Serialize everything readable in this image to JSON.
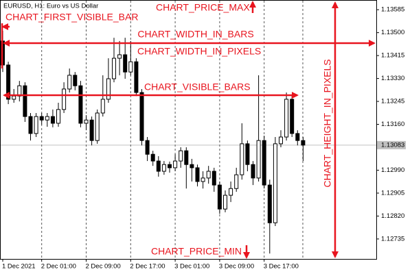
{
  "chart_data": {
    "type": "candlestick",
    "title": "EURUSD, H1:  Euro vs US Dollar",
    "categories": [
      "1 Dec 2021",
      null,
      null,
      null,
      null,
      null,
      null,
      "2 Dec 01:00",
      null,
      null,
      null,
      null,
      null,
      null,
      null,
      "2 Dec 09:00",
      null,
      null,
      null,
      null,
      null,
      null,
      null,
      "2 Dec 17:00",
      null,
      null,
      null,
      null,
      null,
      null,
      null,
      "3 Dec 01:00",
      null,
      null,
      null,
      null,
      null,
      null,
      null,
      "3 Dec 09:00",
      null,
      null,
      null,
      null,
      null,
      null,
      null,
      "3 Dec 17:00",
      null,
      null,
      null,
      null,
      null,
      null,
      null
    ],
    "open": [
      1.13469,
      1.1338,
      1.13253,
      1.13265,
      1.13303,
      1.13189,
      1.13126,
      1.13189,
      1.13176,
      1.13189,
      1.13164,
      1.13215,
      1.13291,
      1.13342,
      1.13303,
      1.13164,
      1.13176,
      1.131,
      1.13202,
      1.13253,
      1.13329,
      1.13405,
      1.13418,
      1.13354,
      1.13392,
      1.13278,
      1.131,
      1.13049,
      1.13024,
      1.12986,
      1.13011,
      1.12999,
      1.13024,
      1.13062,
      1.13011,
      1.12999,
      1.12948,
      1.12961,
      1.12986,
      1.12935,
      1.12846,
      1.12897,
      1.12922,
      1.12973,
      1.13088,
      1.13011,
      1.12961,
      1.131,
      1.12935,
      1.12795,
      1.13088,
      1.13113,
      1.13253,
      1.13126,
      1.131
    ],
    "high": [
      1.13507,
      1.13392,
      1.13291,
      1.13321,
      1.13316,
      1.13202,
      1.13202,
      1.13202,
      1.13202,
      1.13215,
      1.1324,
      1.13316,
      1.13367,
      1.13354,
      1.13321,
      1.13194,
      1.13189,
      1.13215,
      1.13342,
      1.13405,
      1.13481,
      1.13469,
      1.13481,
      1.13469,
      1.13405,
      1.13291,
      1.13113,
      1.13062,
      1.13042,
      1.13024,
      1.13022,
      1.13049,
      1.13075,
      1.13075,
      1.13032,
      1.13011,
      1.12986,
      1.13006,
      1.12999,
      1.12948,
      1.12915,
      1.12948,
      1.12999,
      1.13164,
      1.131,
      1.13024,
      1.13342,
      1.13118,
      1.12955,
      1.13113,
      1.13138,
      1.13278,
      1.13265,
      1.13138,
      1.13113
    ],
    "low": [
      1.13354,
      1.13235,
      1.1324,
      1.13245,
      1.13169,
      1.131,
      1.13113,
      1.13159,
      1.13151,
      1.13149,
      1.13151,
      1.13202,
      1.13278,
      1.13286,
      1.13149,
      1.13138,
      1.13082,
      1.13088,
      1.13189,
      1.1324,
      1.13316,
      1.13342,
      1.13329,
      1.13342,
      1.13265,
      1.13082,
      1.13024,
      1.13006,
      1.12966,
      1.12973,
      1.12981,
      1.12986,
      1.12999,
      1.12922,
      1.12948,
      1.1293,
      1.12922,
      1.1294,
      1.1291,
      1.12828,
      1.12834,
      1.12872,
      1.1291,
      1.12955,
      1.12986,
      1.12935,
      1.12948,
      1.12922,
      1.12681,
      1.12783,
      1.13075,
      1.131,
      1.13113,
      1.13082,
      1.13024
    ],
    "close": [
      1.1338,
      1.13253,
      1.13265,
      1.13303,
      1.13189,
      1.13126,
      1.13189,
      1.13176,
      1.13189,
      1.13164,
      1.13215,
      1.13291,
      1.13342,
      1.13303,
      1.13164,
      1.13176,
      1.131,
      1.13202,
      1.13253,
      1.13329,
      1.13405,
      1.13418,
      1.13354,
      1.13392,
      1.13278,
      1.131,
      1.13049,
      1.13024,
      1.12986,
      1.13011,
      1.12999,
      1.13024,
      1.13062,
      1.13011,
      1.12999,
      1.12948,
      1.12961,
      1.12986,
      1.12935,
      1.12846,
      1.12897,
      1.12922,
      1.12973,
      1.13088,
      1.13011,
      1.12961,
      1.131,
      1.12935,
      1.12795,
      1.13088,
      1.13113,
      1.13253,
      1.13126,
      1.131,
      1.13083
    ],
    "ylim": [
      1.12661,
      1.13621
    ],
    "yticks": [
      1.13585,
      {
        "value": 1.135,
        "label": "1.13500"
      },
      1.13415,
      {
        "value": 1.1333,
        "label": "1.13330"
      },
      1.13245,
      {
        "value": 1.1316,
        "label": "1.13160"
      },
      {
        "value": 1.1299,
        "label": "1.12990"
      },
      1.12905,
      {
        "value": 1.1282,
        "label": "1.12820"
      },
      1.12735
    ],
    "current_price": 1.13083,
    "annotations": {
      "price_max": "CHART_PRICE_MAX",
      "first_visible_bar": "CHART_FIRST_VISIBLE_BAR",
      "width_in_bars": "CHART_WIDTH_IN_BARS",
      "width_in_pixels": "CHART_WIDTH_IN_PIXELS",
      "visible_bars": "CHART_VISIBLE_BARS",
      "height_in_pixels": "CHART_HEIGHT_IN_PIXELS",
      "price_min": "CHART_PRICE_MIN"
    }
  }
}
